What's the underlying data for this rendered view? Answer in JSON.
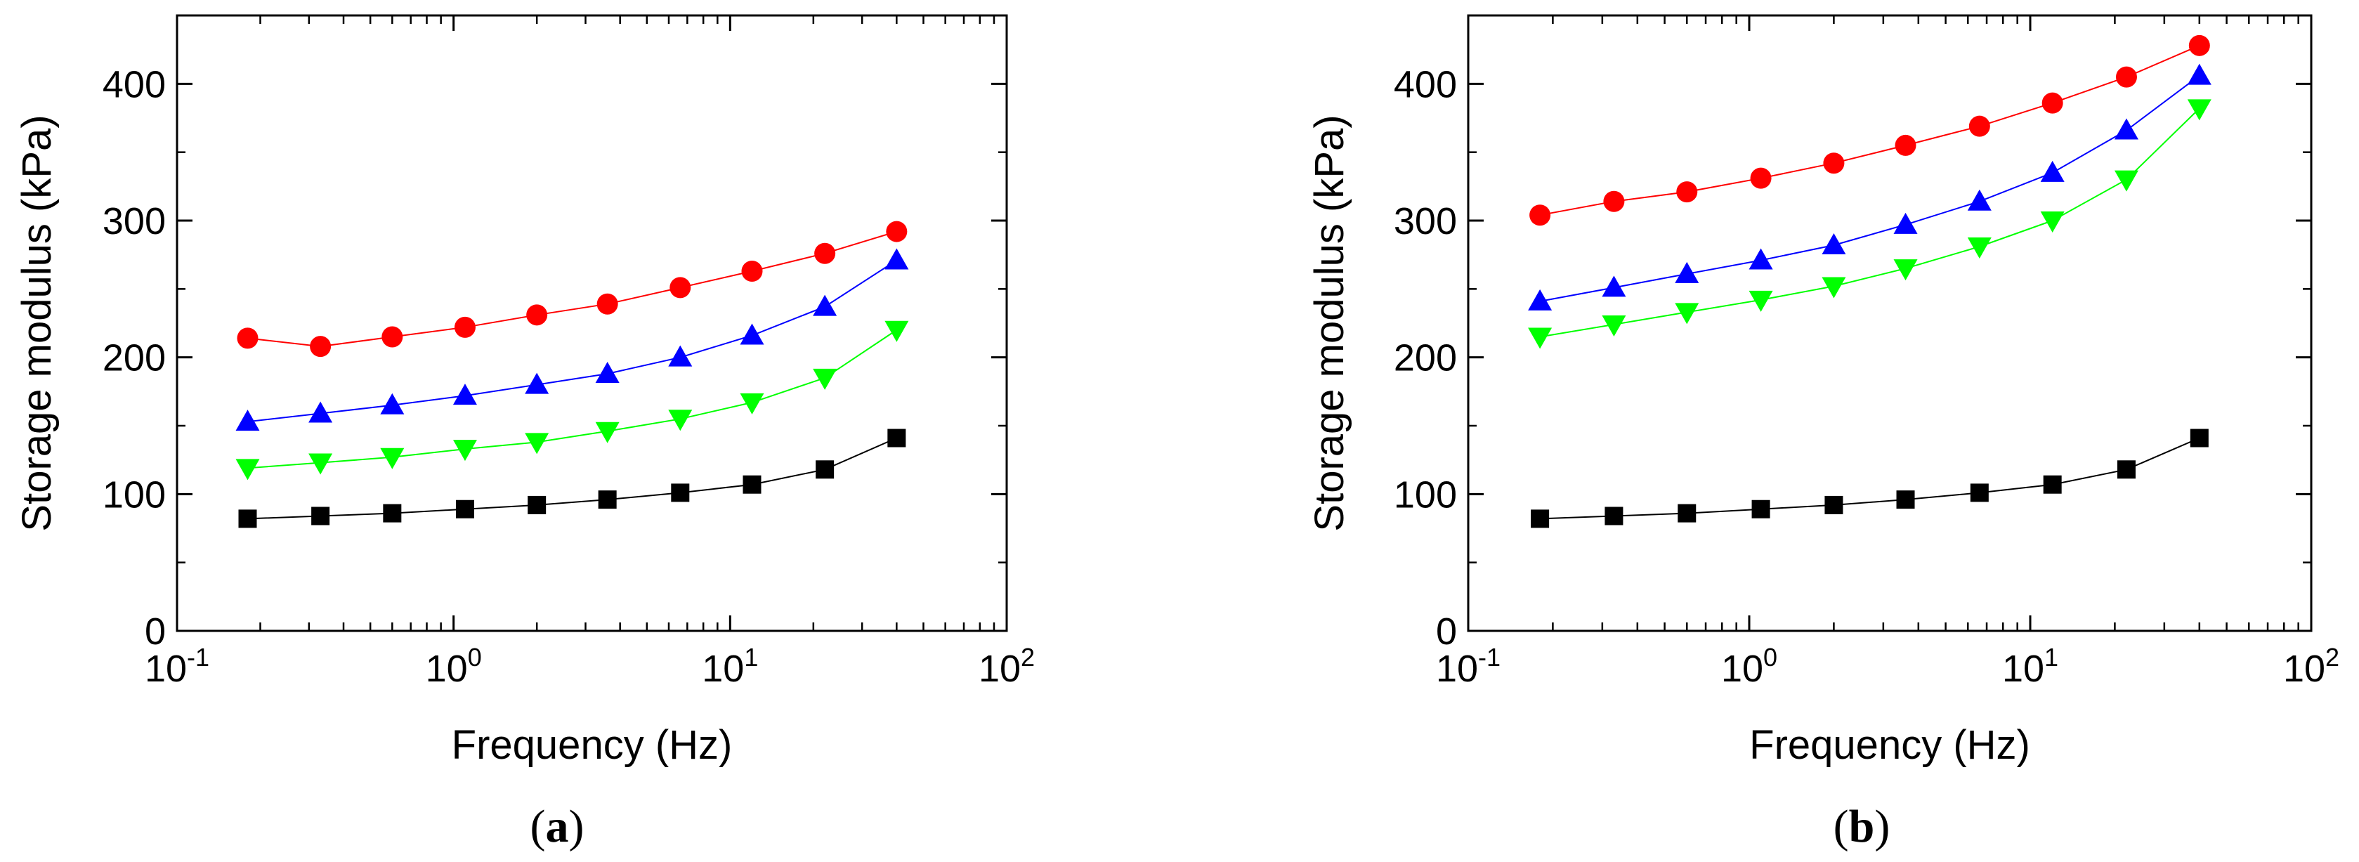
{
  "chart_data": [
    {
      "type": "line",
      "panel_label": "a",
      "xlabel": "Frequency (Hz)",
      "ylabel": "Storage modulus (kPa)",
      "xscale": "log",
      "xlim": [
        0.1,
        100
      ],
      "ylim": [
        0,
        450
      ],
      "x_ticks": [
        {
          "base": "10",
          "exp": "-1"
        },
        {
          "base": "10",
          "exp": "0"
        },
        {
          "base": "10",
          "exp": "1"
        },
        {
          "base": "10",
          "exp": "2"
        }
      ],
      "y_ticks": [
        "0",
        "100",
        "200",
        "300",
        "400"
      ],
      "x": [
        0.18,
        0.33,
        0.6,
        1.1,
        2.0,
        3.6,
        6.6,
        12,
        22,
        40
      ],
      "series": [
        {
          "name": "black squares",
          "marker": "square",
          "color": "#000000",
          "values": [
            82,
            84,
            86,
            89,
            92,
            96,
            101,
            107,
            118,
            141
          ]
        },
        {
          "name": "red circles",
          "marker": "circle",
          "color": "#ff0000",
          "values": [
            214,
            208,
            215,
            222,
            231,
            239,
            251,
            263,
            276,
            292
          ]
        },
        {
          "name": "blue triangles",
          "marker": "triangle-up",
          "color": "#0000ff",
          "values": [
            153,
            159,
            165,
            172,
            180,
            188,
            200,
            216,
            237,
            271
          ]
        },
        {
          "name": "green inverted triangles",
          "marker": "triangle-down",
          "color": "#00ff00",
          "values": [
            119,
            123,
            127,
            133,
            138,
            146,
            155,
            167,
            185,
            220
          ]
        }
      ]
    },
    {
      "type": "line",
      "panel_label": "b",
      "xlabel": "Frequency (Hz)",
      "ylabel": "Storage modulus (kPa)",
      "xscale": "log",
      "xlim": [
        0.1,
        100
      ],
      "ylim": [
        0,
        450
      ],
      "x_ticks": [
        {
          "base": "10",
          "exp": "-1"
        },
        {
          "base": "10",
          "exp": "0"
        },
        {
          "base": "10",
          "exp": "1"
        },
        {
          "base": "10",
          "exp": "2"
        }
      ],
      "y_ticks": [
        "0",
        "100",
        "200",
        "300",
        "400"
      ],
      "x": [
        0.18,
        0.33,
        0.6,
        1.1,
        2.0,
        3.6,
        6.6,
        12,
        22,
        40
      ],
      "series": [
        {
          "name": "black squares",
          "marker": "square",
          "color": "#000000",
          "values": [
            82,
            84,
            86,
            89,
            92,
            96,
            101,
            107,
            118,
            141
          ]
        },
        {
          "name": "red circles",
          "marker": "circle",
          "color": "#ff0000",
          "values": [
            304,
            314,
            321,
            331,
            342,
            355,
            369,
            386,
            405,
            428
          ]
        },
        {
          "name": "blue triangles",
          "marker": "triangle-up",
          "color": "#0000ff",
          "values": [
            241,
            251,
            261,
            271,
            282,
            297,
            314,
            335,
            366,
            406
          ]
        },
        {
          "name": "green inverted triangles",
          "marker": "triangle-down",
          "color": "#00ff00",
          "values": [
            215,
            224,
            233,
            242,
            252,
            265,
            281,
            300,
            330,
            382
          ]
        }
      ]
    }
  ]
}
